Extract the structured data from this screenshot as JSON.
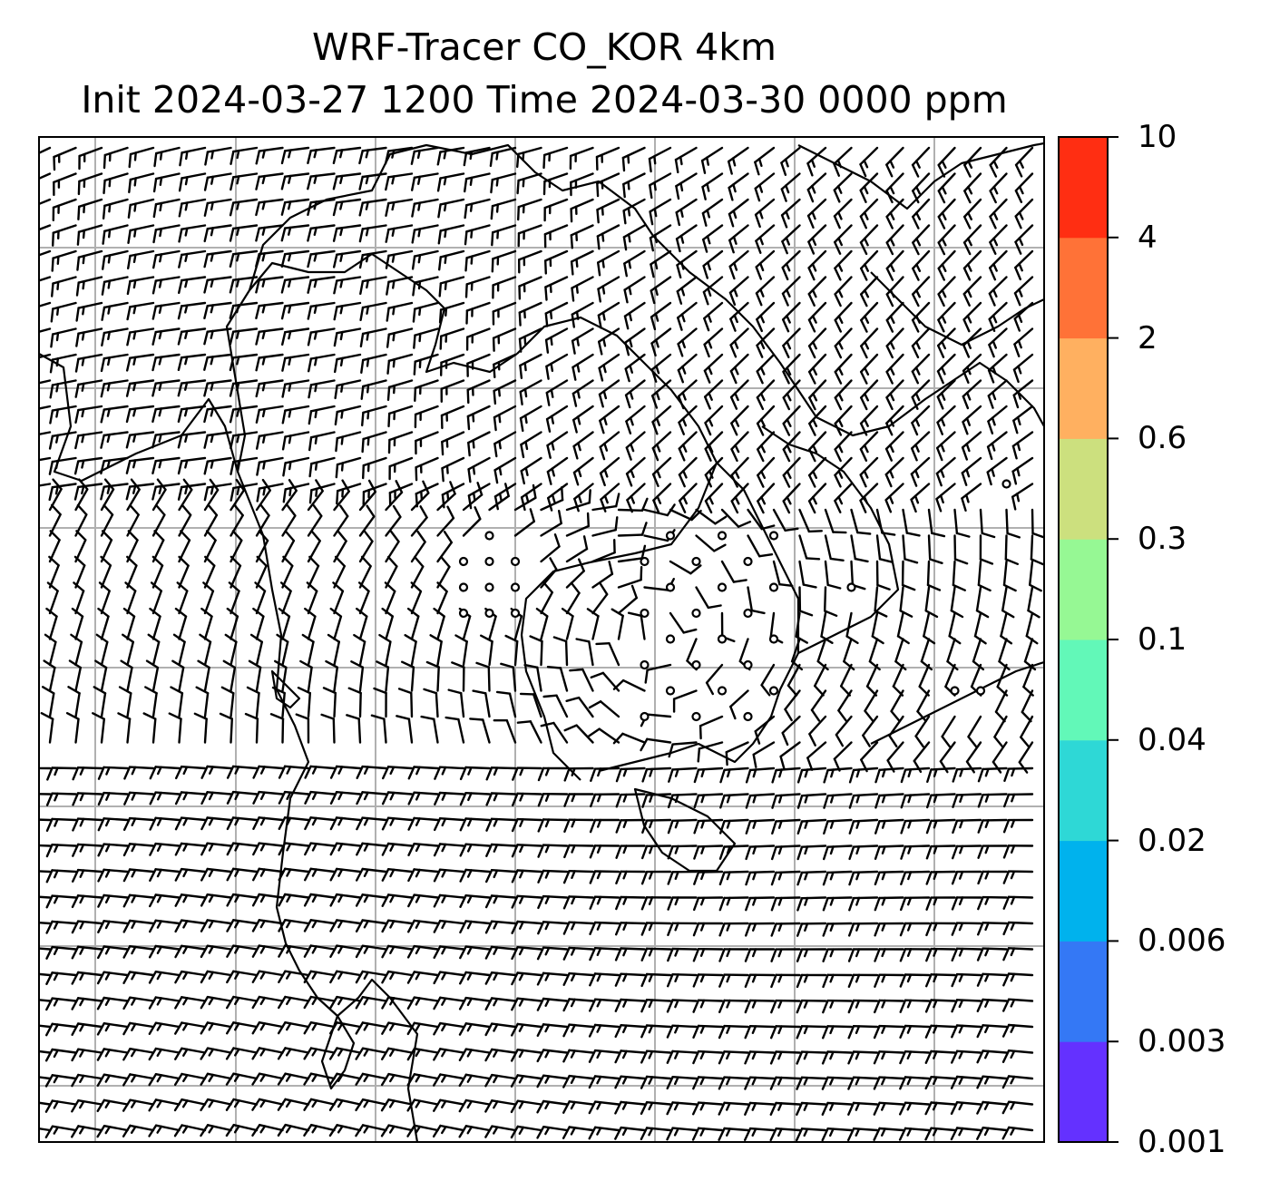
{
  "title": {
    "line1": "WRF-Tracer CO_KOR 4km",
    "line2": "Init 2024-03-27 1200 Time 2024-03-30 0000 ppm"
  },
  "colorbar": {
    "labels": [
      "0.001",
      "0.003",
      "0.006",
      "0.02",
      "0.04",
      "0.1",
      "0.3",
      "0.6",
      "2",
      "4",
      "10"
    ],
    "colors": [
      "#6431ff",
      "#3478f5",
      "#00b2ed",
      "#2ed8d6",
      "#62f8b8",
      "#96f894",
      "#cce07e",
      "#ffb060",
      "#ff7237",
      "#ff2e12"
    ]
  },
  "map": {
    "wind_barb_color": "#000000",
    "coastline_color": "#000000",
    "gridline_color": "#b0b0b0"
  }
}
